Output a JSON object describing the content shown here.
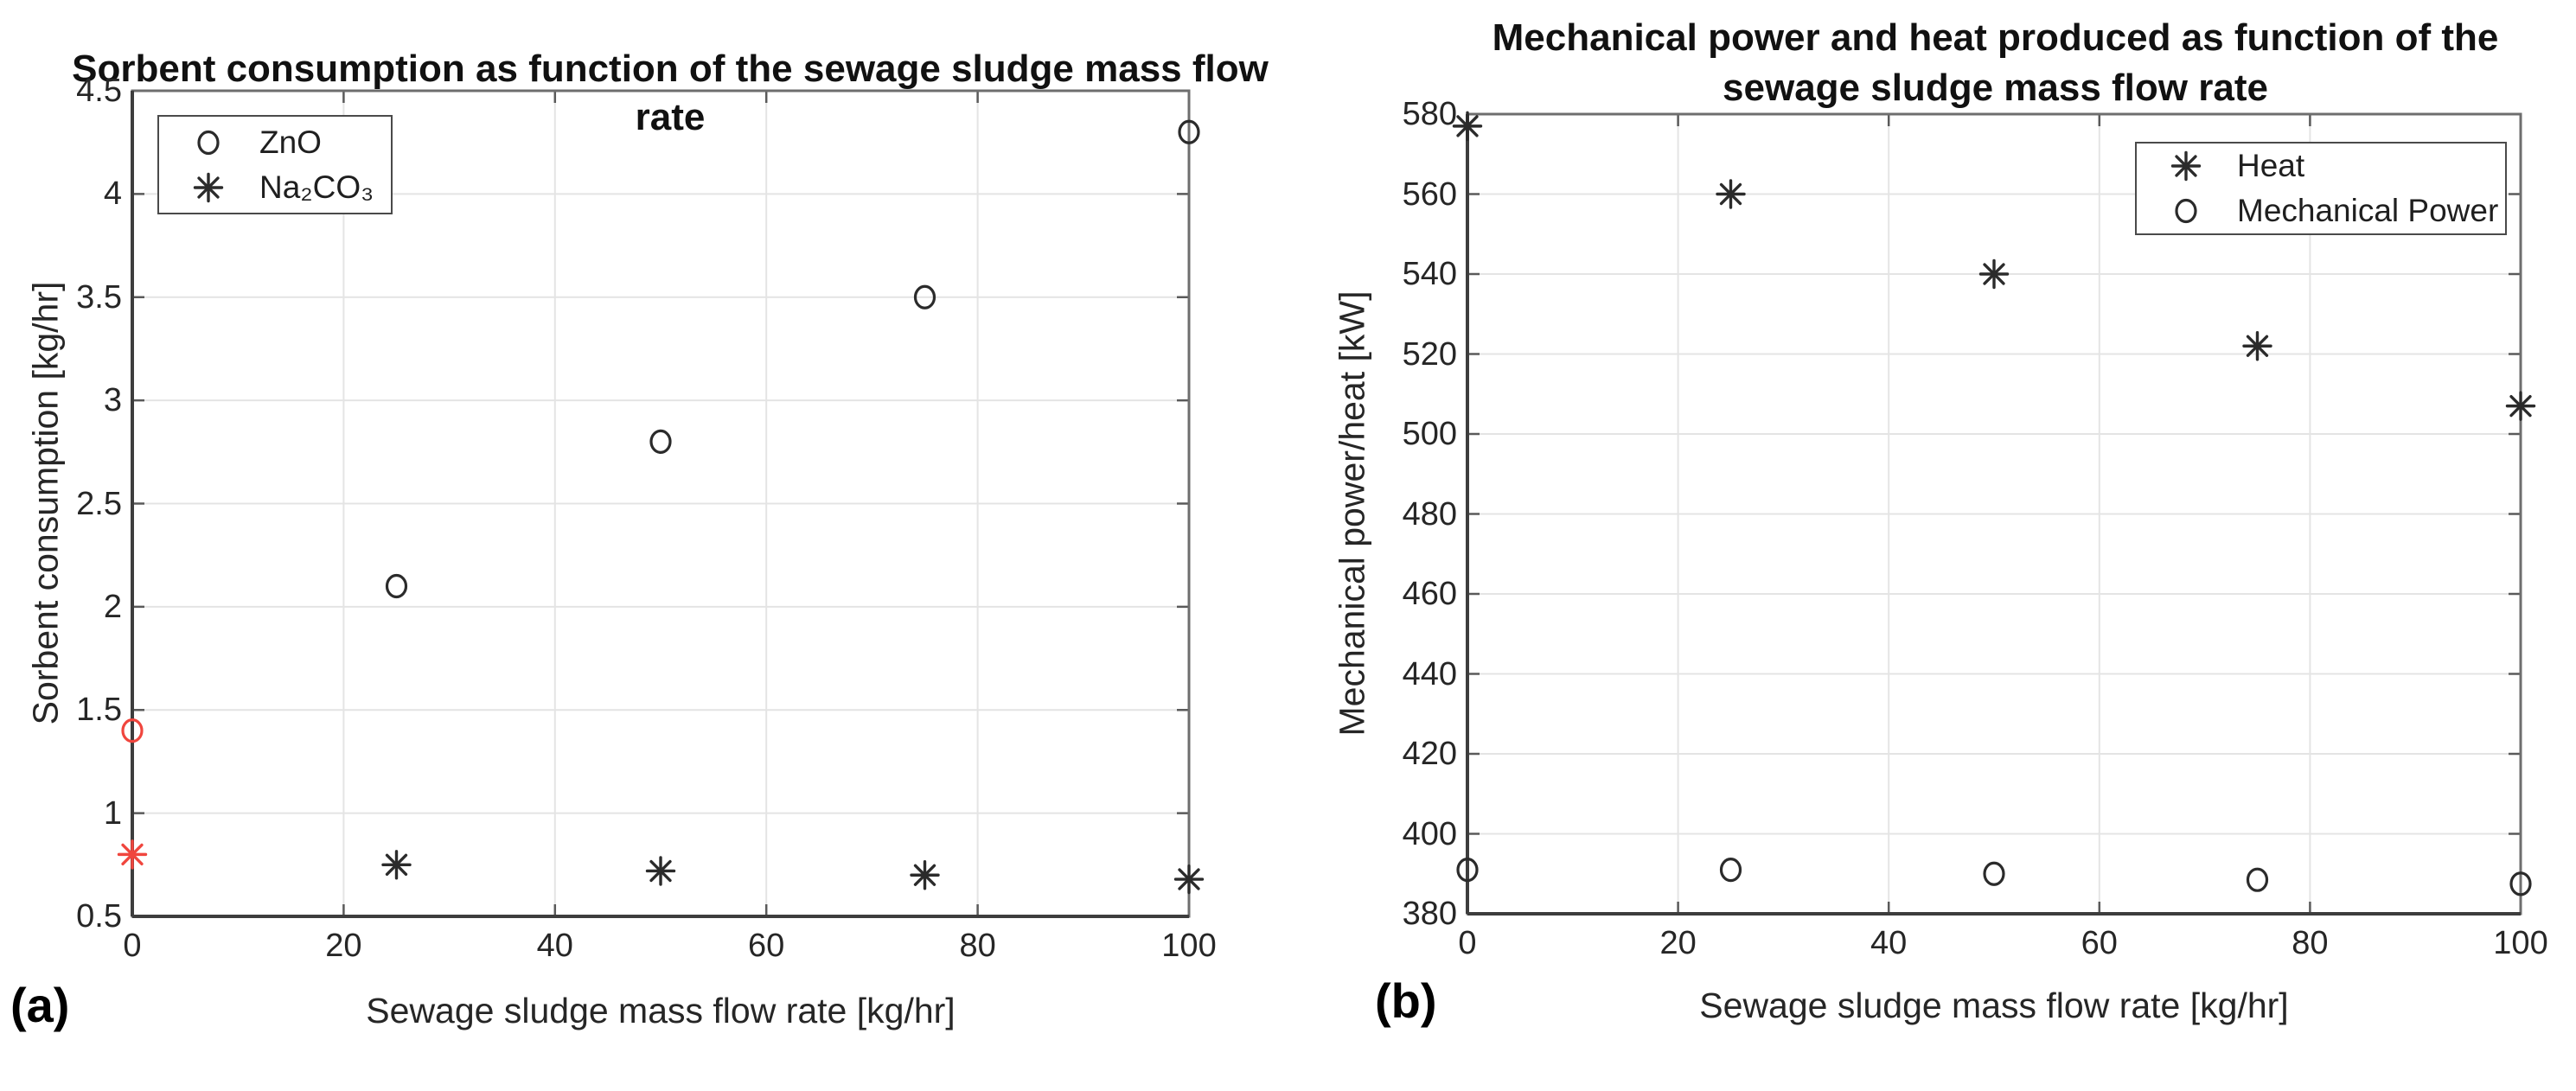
{
  "panels": {
    "a_label": "(a)",
    "b_label": "(b)"
  },
  "colors": {
    "marker_default": "#2b2b2b",
    "marker_highlight": "#f0463e",
    "grid": "#e4e4e4",
    "axis_box": "#6e6e6e"
  },
  "chart_data": [
    {
      "panel": "a",
      "type": "scatter",
      "title": "Sorbent consumption as function of the sewage sludge mass flow rate",
      "title_lines": [
        "Sorbent consumption as function of the sewage sludge mass flow rate"
      ],
      "xlabel": "Sewage sludge mass flow rate [kg/hr]",
      "ylabel": "Sorbent consumption [kg/hr]",
      "xlim": [
        0,
        100
      ],
      "ylim": [
        0.5,
        4.5
      ],
      "xticks": [
        0,
        20,
        40,
        60,
        80,
        100
      ],
      "yticks": [
        0.5,
        1,
        1.5,
        2,
        2.5,
        3,
        3.5,
        4,
        4.5
      ],
      "grid": true,
      "legend_position": "top-left",
      "series": [
        {
          "name": "ZnO",
          "marker": "circle",
          "x": [
            0,
            25,
            50,
            75,
            100
          ],
          "y": [
            1.4,
            2.1,
            2.8,
            3.5,
            4.3
          ],
          "point_colors": [
            "#f0463e",
            null,
            null,
            null,
            null
          ]
        },
        {
          "name": "Na₂CO₃",
          "marker": "asterisk",
          "x": [
            0,
            25,
            50,
            75,
            100
          ],
          "y": [
            0.8,
            0.75,
            0.72,
            0.7,
            0.68
          ],
          "point_colors": [
            "#f0463e",
            null,
            null,
            null,
            null
          ]
        }
      ]
    },
    {
      "panel": "b",
      "type": "scatter",
      "title": "Mechanical power and heat produced as function of the sewage sludge mass flow rate",
      "title_lines": [
        "Mechanical power and heat produced as function of the",
        "sewage sludge mass flow rate"
      ],
      "xlabel": "Sewage sludge mass flow rate [kg/hr]",
      "ylabel": "Mechanical power/heat [kW]",
      "xlim": [
        0,
        100
      ],
      "ylim": [
        380,
        580
      ],
      "xticks": [
        0,
        20,
        40,
        60,
        80,
        100
      ],
      "yticks": [
        380,
        400,
        420,
        440,
        460,
        480,
        500,
        520,
        540,
        560,
        580
      ],
      "grid": true,
      "legend_position": "top-right",
      "series": [
        {
          "name": "Heat",
          "marker": "asterisk",
          "x": [
            0,
            25,
            50,
            75,
            100
          ],
          "y": [
            577,
            560,
            540,
            522,
            507
          ],
          "point_colors": [
            null,
            null,
            null,
            null,
            null
          ]
        },
        {
          "name": "Mechanical Power",
          "marker": "circle",
          "x": [
            0,
            25,
            50,
            75,
            100
          ],
          "y": [
            391,
            391,
            390,
            388.5,
            387.5
          ],
          "point_colors": [
            null,
            null,
            null,
            null,
            null
          ]
        }
      ]
    }
  ]
}
